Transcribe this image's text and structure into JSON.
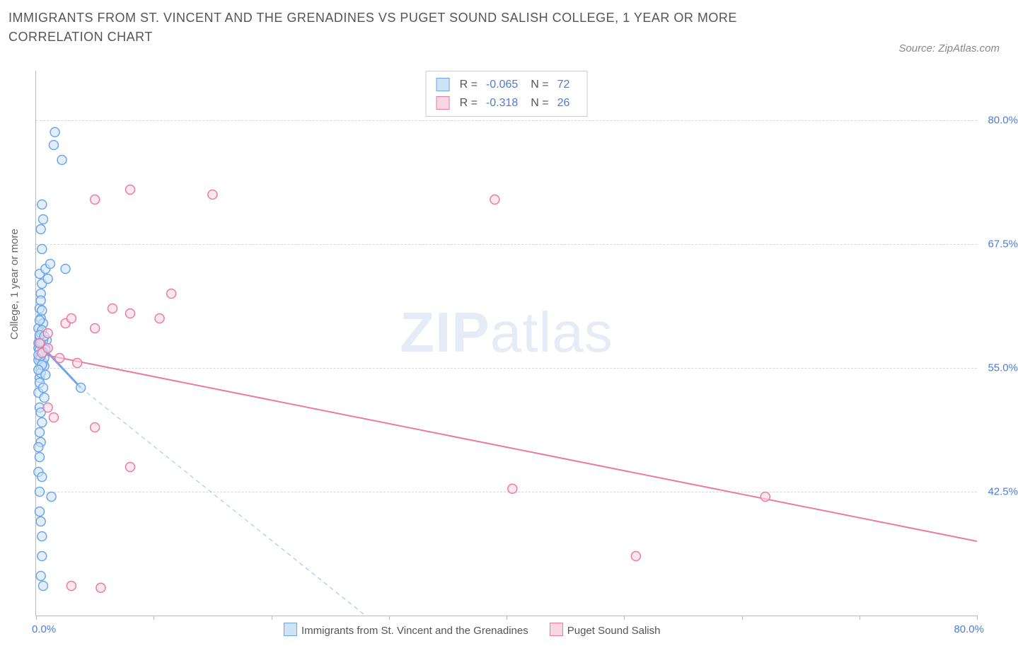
{
  "title": "IMMIGRANTS FROM ST. VINCENT AND THE GRENADINES VS PUGET SOUND SALISH COLLEGE, 1 YEAR OR MORE CORRELATION CHART",
  "source": "Source: ZipAtlas.com",
  "watermark_zip": "ZIP",
  "watermark_atlas": "atlas",
  "ylabel": "College, 1 year or more",
  "chart": {
    "type": "scatter",
    "background_color": "#ffffff",
    "grid_color": "#d8d8d8",
    "axis_color": "#bbbbbb",
    "tick_label_color": "#4a7dd6",
    "text_color": "#555555",
    "xlim": [
      0,
      80
    ],
    "ylim": [
      30,
      85
    ],
    "xticks": [
      0,
      10,
      20,
      30,
      40,
      50,
      60,
      70,
      80
    ],
    "xtick_labels_shown": {
      "0": "0.0%",
      "80": "80.0%"
    },
    "yticks": [
      42.5,
      55.0,
      67.5,
      80.0
    ],
    "ytick_labels": [
      "42.5%",
      "55.0%",
      "67.5%",
      "80.0%"
    ],
    "marker_radius": 6.5,
    "marker_stroke_width": 1.5,
    "marker_fill_opacity": 0.25,
    "series": [
      {
        "name": "Immigrants from St. Vincent and the Grenadines",
        "color_stroke": "#6da6e8",
        "color_fill": "#cfe3f7",
        "R": "-0.065",
        "N": "72",
        "regression": {
          "x1": 0,
          "y1": 57.8,
          "x2": 3.8,
          "y2": 53.0,
          "dash_extend_to_x": 28,
          "dash_extend_to_y": 30,
          "width": 2
        },
        "points": [
          [
            0.2,
            57.0
          ],
          [
            0.2,
            57.5
          ],
          [
            0.3,
            56.0
          ],
          [
            0.3,
            58.0
          ],
          [
            0.4,
            55.0
          ],
          [
            0.4,
            58.5
          ],
          [
            0.5,
            56.5
          ],
          [
            0.5,
            57.2
          ],
          [
            0.3,
            54.0
          ],
          [
            0.6,
            55.5
          ],
          [
            0.7,
            56.0
          ],
          [
            0.8,
            57.0
          ],
          [
            0.2,
            59.0
          ],
          [
            0.4,
            60.0
          ],
          [
            0.6,
            59.5
          ],
          [
            0.3,
            61.0
          ],
          [
            0.4,
            62.5
          ],
          [
            0.5,
            63.5
          ],
          [
            0.3,
            64.5
          ],
          [
            0.8,
            65.0
          ],
          [
            1.0,
            64.0
          ],
          [
            1.2,
            65.5
          ],
          [
            2.5,
            65.0
          ],
          [
            0.5,
            67.0
          ],
          [
            0.4,
            69.0
          ],
          [
            0.6,
            70.0
          ],
          [
            0.5,
            71.5
          ],
          [
            1.5,
            77.5
          ],
          [
            1.6,
            78.8
          ],
          [
            2.2,
            76.0
          ],
          [
            0.2,
            52.5
          ],
          [
            0.3,
            51.0
          ],
          [
            0.4,
            50.5
          ],
          [
            0.5,
            49.5
          ],
          [
            0.3,
            48.5
          ],
          [
            0.4,
            47.5
          ],
          [
            0.2,
            47.0
          ],
          [
            0.3,
            46.0
          ],
          [
            0.2,
            44.5
          ],
          [
            0.5,
            44.0
          ],
          [
            0.3,
            42.5
          ],
          [
            1.3,
            42.0
          ],
          [
            0.3,
            40.5
          ],
          [
            0.4,
            39.5
          ],
          [
            0.5,
            38.0
          ],
          [
            0.5,
            36.0
          ],
          [
            0.4,
            34.0
          ],
          [
            0.6,
            33.0
          ],
          [
            0.3,
            53.5
          ],
          [
            0.4,
            54.5
          ],
          [
            0.6,
            53.0
          ],
          [
            0.7,
            52.0
          ],
          [
            0.2,
            55.8
          ],
          [
            0.8,
            56.8
          ],
          [
            0.9,
            57.8
          ],
          [
            0.4,
            56.2
          ],
          [
            0.5,
            58.8
          ],
          [
            0.3,
            56.8
          ],
          [
            0.6,
            57.8
          ],
          [
            0.7,
            55.2
          ],
          [
            0.2,
            56.3
          ],
          [
            0.5,
            55.3
          ],
          [
            0.4,
            57.6
          ],
          [
            0.3,
            58.3
          ],
          [
            0.6,
            56.6
          ],
          [
            0.2,
            54.8
          ],
          [
            0.5,
            60.8
          ],
          [
            0.4,
            61.8
          ],
          [
            0.7,
            58.2
          ],
          [
            0.3,
            59.8
          ],
          [
            3.8,
            53.0
          ],
          [
            0.8,
            54.3
          ]
        ]
      },
      {
        "name": "Puget Sound Salish",
        "color_stroke": "#ea7aa5",
        "color_fill": "#f8d7e3",
        "R": "-0.318",
        "N": "26",
        "regression": {
          "x1": 0,
          "y1": 56.5,
          "x2": 80,
          "y2": 37.5,
          "width": 2
        },
        "points": [
          [
            0.3,
            57.5
          ],
          [
            0.5,
            56.5
          ],
          [
            1.0,
            57.0
          ],
          [
            2.0,
            56.0
          ],
          [
            3.5,
            55.5
          ],
          [
            1.0,
            58.5
          ],
          [
            2.5,
            59.5
          ],
          [
            3.0,
            60.0
          ],
          [
            5.0,
            59.0
          ],
          [
            6.5,
            61.0
          ],
          [
            8.0,
            60.5
          ],
          [
            10.5,
            60.0
          ],
          [
            11.5,
            62.5
          ],
          [
            5.0,
            72.0
          ],
          [
            8.0,
            73.0
          ],
          [
            15.0,
            72.5
          ],
          [
            39.0,
            72.0
          ],
          [
            1.0,
            51.0
          ],
          [
            1.5,
            50.0
          ],
          [
            5.0,
            49.0
          ],
          [
            8.0,
            45.0
          ],
          [
            40.5,
            42.8
          ],
          [
            62.0,
            42.0
          ],
          [
            51.0,
            36.0
          ],
          [
            3.0,
            33.0
          ],
          [
            5.5,
            32.8
          ]
        ]
      }
    ]
  },
  "legend_bottom": [
    {
      "label": "Immigrants from St. Vincent and the Grenadines",
      "stroke": "#6da6e8",
      "fill": "#cfe3f7"
    },
    {
      "label": "Puget Sound Salish",
      "stroke": "#ea7aa5",
      "fill": "#f8d7e3"
    }
  ]
}
